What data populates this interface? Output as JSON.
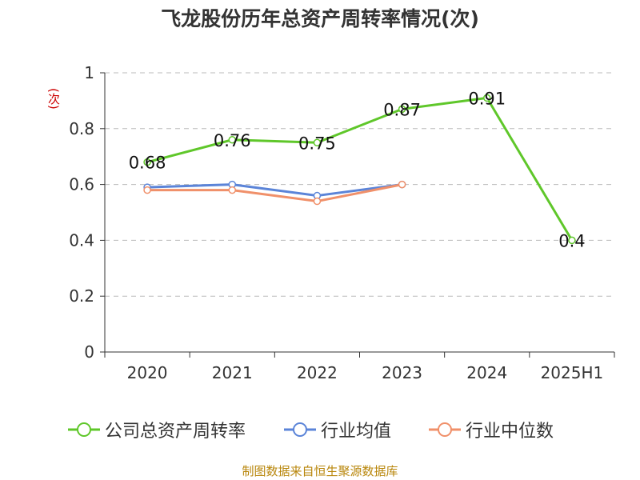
{
  "title": "飞龙股份历年总资产周转率情况(次)",
  "y_unit": "(次)",
  "source": "制图数据来自恒生聚源数据库",
  "colors": {
    "company": "#5fc72a",
    "industry_avg": "#5b84d8",
    "industry_median": "#f0906a",
    "grid": "#bbbbbb",
    "axis": "#333333"
  },
  "chart_data": {
    "type": "line",
    "title": "飞龙股份历年总资产周转率情况(次)",
    "xlabel": "",
    "ylabel": "(次)",
    "categories": [
      "2020",
      "2021",
      "2022",
      "2023",
      "2024",
      "2025H1"
    ],
    "ylim": [
      0,
      1
    ],
    "yticks": [
      "0",
      "0.2",
      "0.4",
      "0.6",
      "0.8",
      "1"
    ],
    "grid": true,
    "legend_position": "bottom",
    "series": [
      {
        "name": "公司总资产周转率",
        "values": [
          0.68,
          0.76,
          0.75,
          0.87,
          0.91,
          0.4
        ],
        "labels": [
          "0.68",
          "0.76",
          "0.75",
          "0.87",
          "0.91",
          "0.4"
        ],
        "color": "#5fc72a"
      },
      {
        "name": "行业均值",
        "values": [
          0.59,
          0.6,
          0.56,
          0.6,
          null,
          null
        ],
        "color": "#5b84d8"
      },
      {
        "name": "行业中位数",
        "values": [
          0.58,
          0.58,
          0.54,
          0.6,
          null,
          null
        ],
        "color": "#f0906a"
      }
    ]
  }
}
